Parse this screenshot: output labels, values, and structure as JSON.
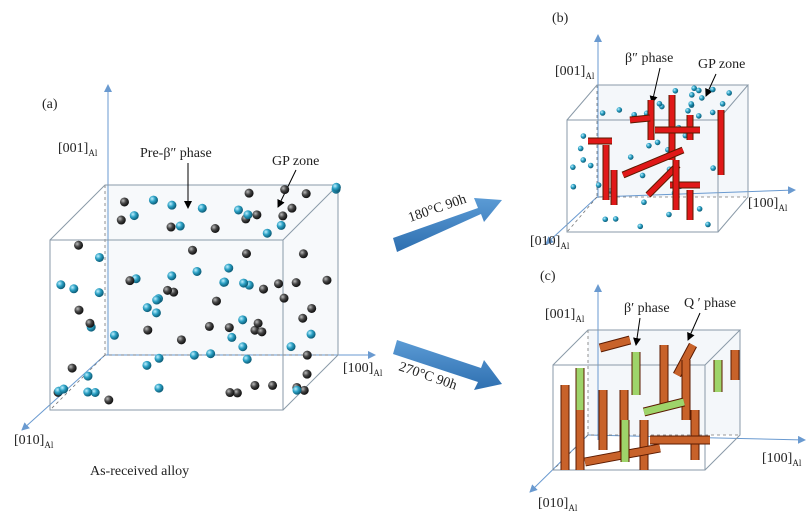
{
  "panels": [
    {
      "label": "(a)",
      "caption": "As-received alloy",
      "axes": {
        "z": {
          "text": "[001]",
          "sub": "Al"
        },
        "x": {
          "text": "[100]",
          "sub": "Al"
        },
        "y": {
          "text": "[010]",
          "sub": "Al"
        }
      },
      "annotations": [
        "Pre-β″ phase",
        "GP zone"
      ]
    },
    {
      "label": "(b)",
      "axes": {
        "z": {
          "text": "[001]",
          "sub": "Al"
        },
        "x": {
          "text": "[100]",
          "sub": "Al"
        },
        "y": {
          "text": "[010]",
          "sub": "Al"
        }
      },
      "annotations": [
        "β″ phase",
        "GP zone"
      ]
    },
    {
      "label": "(c)",
      "axes": {
        "z": {
          "text": "[001]",
          "sub": "Al"
        },
        "x": {
          "text": "[100]",
          "sub": "Al"
        },
        "y": {
          "text": "[010]",
          "sub": "Al"
        }
      },
      "annotations": [
        "β′ phase",
        "Q ′ phase"
      ]
    }
  ],
  "arrows": [
    "180°C 90h",
    "270°C 90h"
  ]
}
